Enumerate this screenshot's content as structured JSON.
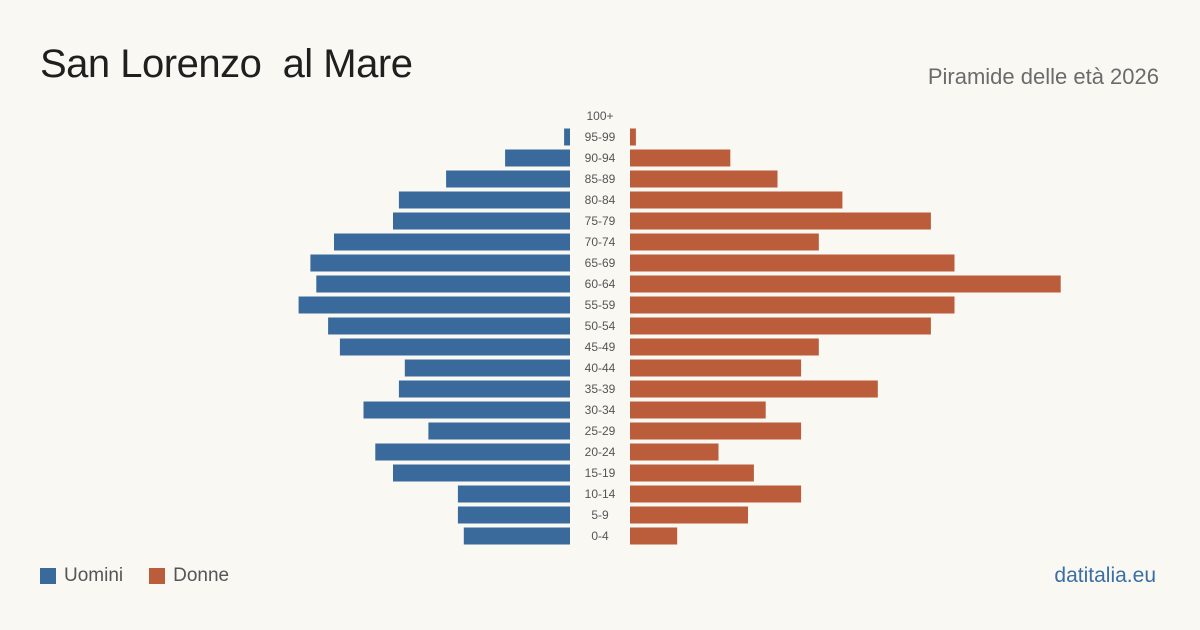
{
  "title": "San Lorenzo  al Mare",
  "subtitle": "Piramide delle età 2026",
  "source": "datitalia.eu",
  "colors": {
    "men": "#3a6a9b",
    "women": "#bb5c3a",
    "background": "#faf8f3"
  },
  "chart_data": {
    "type": "bar",
    "orientation": "horizontal-pyramid",
    "categories": [
      "100+",
      "95-99",
      "90-94",
      "85-89",
      "80-84",
      "75-79",
      "70-74",
      "65-69",
      "60-64",
      "55-59",
      "50-54",
      "45-49",
      "40-44",
      "35-39",
      "30-34",
      "25-29",
      "20-24",
      "15-19",
      "10-14",
      "5-9",
      "0-4"
    ],
    "series": [
      {
        "name": "Uomini",
        "values": [
          0,
          1,
          11,
          21,
          29,
          30,
          40,
          44,
          43,
          46,
          41,
          39,
          28,
          29,
          35,
          24,
          33,
          30,
          19,
          19,
          18
        ]
      },
      {
        "name": "Donne",
        "values": [
          0,
          1,
          17,
          25,
          36,
          51,
          32,
          55,
          73,
          55,
          51,
          32,
          29,
          42,
          23,
          29,
          15,
          21,
          29,
          20,
          8
        ]
      }
    ],
    "legend_position": "bottom-left",
    "grid": false
  }
}
